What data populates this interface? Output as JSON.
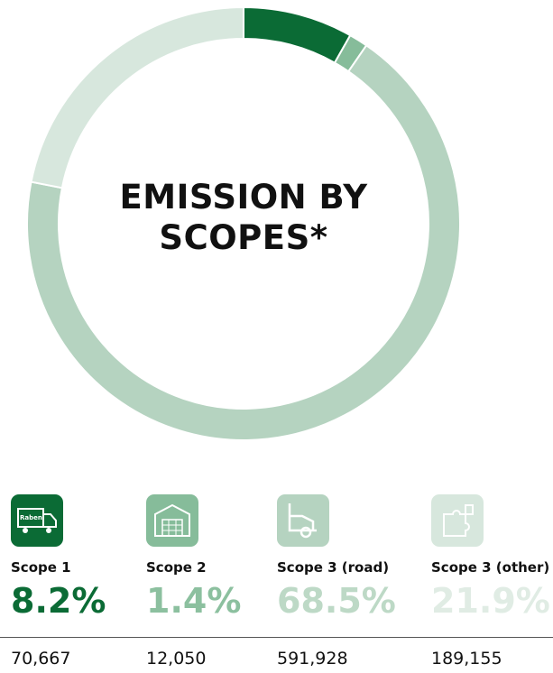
{
  "chart_data": {
    "type": "donut",
    "title": "EMISSION BY SCOPES*",
    "categories": [
      "Scope 1",
      "Scope 2",
      "Scope 3 (road)",
      "Scope 3 (other)"
    ],
    "values": [
      8.2,
      1.4,
      68.5,
      21.9
    ],
    "value_labels": [
      "8.2%",
      "1.4%",
      "68.5%",
      "21.9%"
    ],
    "colors": [
      "#0b6b35",
      "#86bc9a",
      "#b5d3c0",
      "#d7e7dd"
    ],
    "label_colors": [
      "#0b6b35",
      "#8cc09f",
      "#bdd9c6",
      "#e0ece4"
    ],
    "totals": [
      "70,667",
      "12,050",
      "591,928",
      "189,155"
    ],
    "icon_text": "Raben"
  }
}
